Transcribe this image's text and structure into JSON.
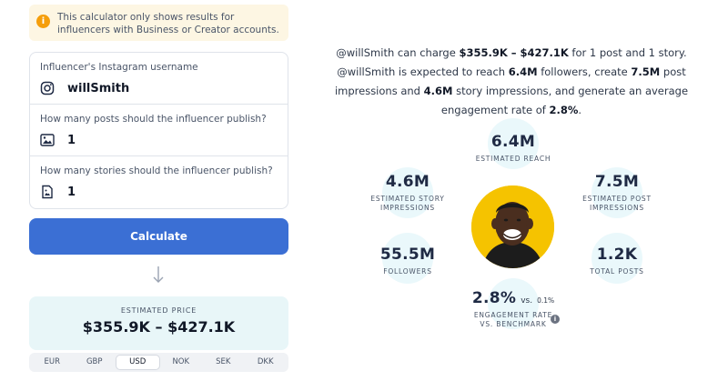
{
  "notice": {
    "text": "This calculator only shows results for influencers with Business or Creator accounts."
  },
  "form": {
    "username": {
      "label": "Influencer's Instagram username",
      "value": "willSmith"
    },
    "posts": {
      "label": "How many posts should the influencer publish?",
      "value": "1"
    },
    "stories": {
      "label": "How many stories should the influencer publish?",
      "value": "1"
    }
  },
  "calculate_label": "Calculate",
  "price": {
    "label": "ESTIMATED PRICE",
    "value": "$355.9K – $427.1K"
  },
  "currencies": [
    "EUR",
    "GBP",
    "USD",
    "NOK",
    "SEK",
    "DKK"
  ],
  "selected_currency": "USD",
  "summary": {
    "p1": "@willSmith can charge ",
    "price": "$355.9K – $427.1K",
    "p2": " for 1 post and 1 story. @willSmith is expected to reach ",
    "reach": "6.4M",
    "p3": " followers, create ",
    "post_impressions": "7.5M",
    "p4": " post impressions and ",
    "story_impressions": "4.6M",
    "p5": " story impressions, and generate an average engagement rate of ",
    "engagement": "2.8%",
    "p6": "."
  },
  "stats": {
    "reach": {
      "value": "6.4M",
      "label": "ESTIMATED REACH"
    },
    "story_impressions": {
      "value": "4.6M",
      "label1": "ESTIMATED STORY",
      "label2": "IMPRESSIONS"
    },
    "post_impressions": {
      "value": "7.5M",
      "label1": "ESTIMATED POST",
      "label2": "IMPRESSIONS"
    },
    "followers": {
      "value": "55.5M",
      "label": "FOLLOWERS"
    },
    "total_posts": {
      "value": "1.2K",
      "label": "TOTAL POSTS"
    },
    "engagement": {
      "value": "2.8%",
      "vs": "vs.",
      "benchmark": "0.1%",
      "label1": "ENGAGEMENT RATE",
      "label2": "VS. BENCHMARK"
    }
  },
  "icons": {
    "notice": "info-icon",
    "username": "instagram-icon",
    "posts": "image-icon",
    "stories": "story-icon",
    "arrow": "arrow-down-icon",
    "engagement_info": "info-icon"
  },
  "colors": {
    "accent": "#3b6fd4",
    "warning": "#f59e0b",
    "avatar_bg": "#f5c300",
    "bubble": "#eaf8fb"
  }
}
